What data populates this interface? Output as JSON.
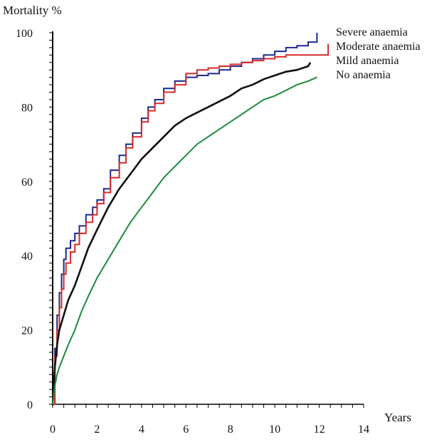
{
  "chart_data": {
    "type": "line",
    "title": "",
    "xlabel": "Years",
    "ylabel": "Mortality %",
    "xlim": [
      0,
      14
    ],
    "ylim": [
      0,
      100
    ],
    "xticks": [
      0,
      2,
      4,
      6,
      8,
      10,
      12,
      14
    ],
    "yticks": [
      0,
      20,
      40,
      60,
      80,
      100
    ],
    "grid": false,
    "legend_position": "top-right",
    "series": [
      {
        "name": "Severe anaemia",
        "color": "#1f2a8c",
        "step": true,
        "x": [
          0,
          0.1,
          0.2,
          0.3,
          0.4,
          0.5,
          0.6,
          0.8,
          1.0,
          1.2,
          1.5,
          1.8,
          2.0,
          2.3,
          2.6,
          3.0,
          3.3,
          3.6,
          4.0,
          4.3,
          4.6,
          5.0,
          5.5,
          6.0,
          6.5,
          7.0,
          7.5,
          8.0,
          8.5,
          9.0,
          9.5,
          10.0,
          10.5,
          11.0,
          11.5,
          11.9,
          11.9
        ],
        "y": [
          0,
          15,
          24,
          30,
          35,
          39,
          42,
          44,
          46,
          48,
          51,
          53,
          55,
          58,
          63,
          67,
          70,
          73,
          77,
          80,
          82,
          85,
          87,
          88,
          88.5,
          89,
          90,
          91,
          92,
          93,
          94,
          95,
          96,
          96.5,
          97.5,
          98,
          100
        ]
      },
      {
        "name": "Moderate anaemia",
        "color": "#d62a2a",
        "step": true,
        "x": [
          0,
          0.1,
          0.2,
          0.3,
          0.4,
          0.5,
          0.6,
          0.8,
          1.0,
          1.2,
          1.5,
          1.8,
          2.0,
          2.3,
          2.6,
          3.0,
          3.3,
          3.6,
          4.0,
          4.3,
          4.6,
          5.0,
          5.5,
          6.0,
          6.5,
          7.0,
          7.5,
          8.0,
          8.5,
          9.0,
          9.5,
          10.0,
          10.5,
          11.0,
          11.5,
          12.0,
          12.4,
          12.4
        ],
        "y": [
          0,
          13,
          20,
          26,
          31,
          35,
          38,
          41,
          43,
          46,
          49,
          51,
          54,
          57,
          61,
          65,
          69,
          72,
          76,
          79,
          81,
          84,
          86,
          89,
          90,
          90.5,
          91,
          91.5,
          92,
          92.5,
          93,
          93.5,
          94,
          94,
          94,
          94,
          94,
          97
        ]
      },
      {
        "name": "Mild anaemia",
        "color": "#111111",
        "step": false,
        "x": [
          0,
          0.1,
          0.2,
          0.3,
          0.5,
          0.7,
          1.0,
          1.3,
          1.6,
          2.0,
          2.5,
          3.0,
          3.5,
          4.0,
          4.5,
          5.0,
          5.5,
          6.0,
          6.5,
          7.0,
          7.5,
          8.0,
          8.5,
          9.0,
          9.5,
          10.0,
          10.5,
          11.0,
          11.5,
          11.6
        ],
        "y": [
          0,
          10,
          16,
          20,
          24,
          28,
          32,
          37,
          42,
          47,
          53,
          58,
          62,
          66,
          69,
          72,
          75,
          77,
          78.5,
          80,
          81.5,
          83,
          85,
          86,
          87.5,
          88.5,
          89.5,
          90,
          91,
          92
        ]
      },
      {
        "name": "No anaemia",
        "color": "#1a8c3c",
        "step": false,
        "x": [
          0,
          0.1,
          0.2,
          0.3,
          0.5,
          0.7,
          1.0,
          1.3,
          1.6,
          2.0,
          2.5,
          3.0,
          3.5,
          4.0,
          4.5,
          5.0,
          5.5,
          6.0,
          6.5,
          7.0,
          7.5,
          8.0,
          8.5,
          9.0,
          9.5,
          10.0,
          10.5,
          11.0,
          11.5,
          11.9
        ],
        "y": [
          0,
          5,
          8,
          10,
          13,
          16,
          20,
          25,
          29,
          34,
          39,
          44,
          49,
          53,
          57,
          61,
          64,
          67,
          70,
          72,
          74,
          76,
          78,
          80,
          82,
          83,
          84.5,
          86,
          87,
          88
        ]
      }
    ]
  }
}
